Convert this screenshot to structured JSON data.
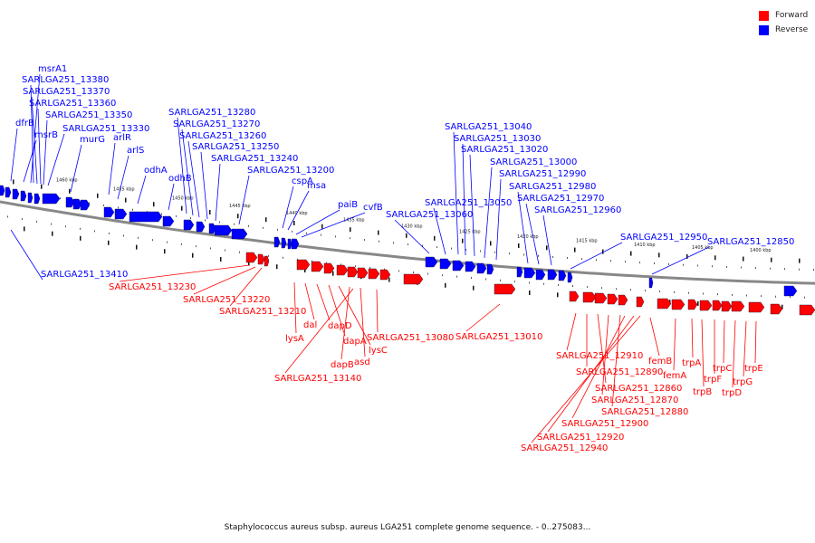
{
  "legend": {
    "forward_label": "Forward",
    "reverse_label": "Reverse",
    "forward_color": "#ff0000",
    "reverse_color": "#0000ff"
  },
  "caption": "Staphylococcus aureus subsp. aureus LGA251 complete genome sequence. - 0..275083...",
  "colors": {
    "backbone": "#888888",
    "forward": "#ff0000",
    "reverse": "#0000ff",
    "ticks": "#222222"
  },
  "scale_ticks": [
    "1460 kbp",
    "1455 kbp",
    "1450 kbp",
    "1445 kbp",
    "1440 kbp",
    "1435 kbp",
    "1430 kbp",
    "1425 kbp",
    "1420 kbp",
    "1415 kbp",
    "1410 kbp",
    "1405 kbp",
    "1400 kbp"
  ],
  "reverse_genes": [
    "msrA1",
    "SARLGA251_13380",
    "SARLGA251_13370",
    "SARLGA251_13360",
    "SARLGA251_13350",
    "SARLGA251_13330",
    "dfrB",
    "msrB",
    "murG",
    "arlR",
    "arlS",
    "odhA",
    "odhB",
    "SARLGA251_13280",
    "SARLGA251_13270",
    "SARLGA251_13260",
    "SARLGA251_13250",
    "SARLGA251_13240",
    "SARLGA251_13200",
    "cspA",
    "msa",
    "paiB",
    "cvfB",
    "SARLGA251_13060",
    "SARLGA251_13050",
    "SARLGA251_13040",
    "SARLGA251_13030",
    "SARLGA251_13020",
    "SARLGA251_13000",
    "SARLGA251_12990",
    "SARLGA251_12980",
    "SARLGA251_12970",
    "SARLGA251_12960",
    "SARLGA251_12950",
    "SARLGA251_12850",
    "SARLGA251_13410"
  ],
  "forward_genes": [
    "SARLGA251_13230",
    "SARLGA251_13220",
    "SARLGA251_13210",
    "lysA",
    "dal",
    "dapD",
    "dapA",
    "lysC",
    "dapB",
    "asd",
    "SARLGA251_13140",
    "SARLGA251_13080",
    "SARLGA251_13010",
    "SARLGA251_12910",
    "SARLGA251_12890",
    "SARLGA251_12860",
    "SARLGA251_12870",
    "SARLGA251_12880",
    "SARLGA251_12900",
    "SARLGA251_12920",
    "SARLGA251_12940",
    "femB",
    "femA",
    "trpA",
    "trpB",
    "trpF",
    "trpC",
    "trpD",
    "trpG",
    "trpE"
  ]
}
